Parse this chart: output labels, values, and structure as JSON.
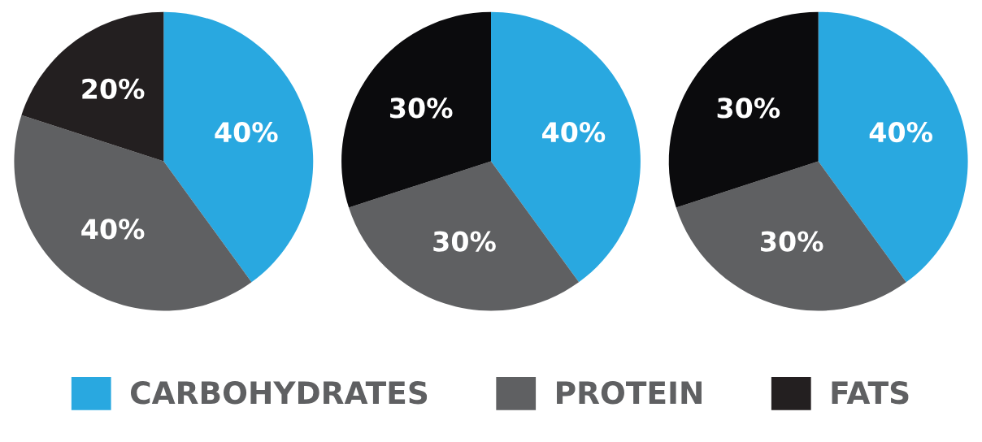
{
  "chart_data": [
    {
      "type": "pie",
      "categories": [
        "CARBOHYDRATES",
        "PROTEIN",
        "FATS"
      ],
      "values": [
        40,
        40,
        20
      ],
      "colors": [
        "#29a8e0",
        "#5f6062",
        "#231f20"
      ],
      "value_labels": [
        "40%",
        "40%",
        "20%"
      ],
      "legend": "bottom"
    },
    {
      "type": "pie",
      "categories": [
        null,
        null,
        null
      ],
      "values": [
        40,
        30,
        30
      ],
      "colors": [
        "#29a8e0",
        "#5f6062",
        "#0b0b0d"
      ],
      "value_labels": [
        "40%",
        "30%",
        "30%"
      ]
    },
    {
      "type": "pie",
      "categories": [
        null,
        null,
        null
      ],
      "values": [
        40,
        30,
        30
      ],
      "colors": [
        "#29a8e0",
        "#5f6062",
        "#0b0b0d"
      ],
      "value_labels": [
        "40%",
        "30%",
        "30%"
      ]
    }
  ]
}
